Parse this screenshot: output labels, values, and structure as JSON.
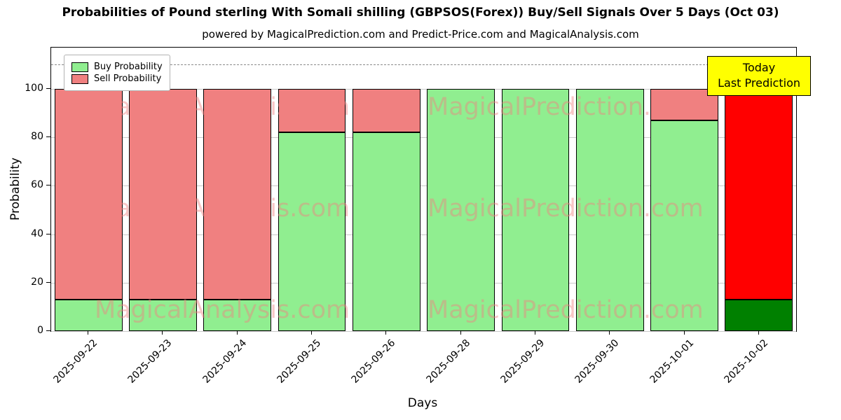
{
  "figure": {
    "title": "Probabilities of Pound sterling With Somali shilling (GBPSOS(Forex)) Buy/Sell Signals Over 5 Days (Oct 03)",
    "subtitle": "powered by MagicalPrediction.com and Predict-Price.com and MagicalAnalysis.com",
    "xlabel": "Days",
    "ylabel": "Probability"
  },
  "legend": {
    "buy_label": "Buy Probability",
    "sell_label": "Sell Probability"
  },
  "annotation": {
    "line1": "Today",
    "line2": "Last Prediction",
    "bg_color": "#ffff00"
  },
  "watermarks": {
    "left_text": "MagicalAnalysis.com",
    "right_text": "MagicalPrediction.com"
  },
  "chart_data": {
    "type": "bar",
    "stacked": true,
    "title": "Probabilities of Pound sterling With Somali shilling (GBPSOS(Forex)) Buy/Sell Signals Over 5 Days (Oct 03)",
    "xlabel": "Days",
    "ylabel": "Probability",
    "categories": [
      "2025-09-22",
      "2025-09-23",
      "2025-09-24",
      "2025-09-25",
      "2025-09-26",
      "2025-09-28",
      "2025-09-29",
      "2025-09-30",
      "2025-10-01",
      "2025-10-02"
    ],
    "series": [
      {
        "name": "Buy Probability",
        "color": "#90ee90",
        "values": [
          13,
          13,
          13,
          82,
          82,
          100,
          100,
          100,
          87,
          13
        ]
      },
      {
        "name": "Sell Probability",
        "color": "#f08080",
        "values": [
          87,
          87,
          87,
          18,
          18,
          0,
          0,
          0,
          13,
          87
        ]
      }
    ],
    "today_bar": {
      "category": "2025-10-02",
      "buy_color": "#008000",
      "sell_color": "#ff0000"
    },
    "ylim": [
      0,
      117
    ],
    "yticks": [
      0,
      20,
      40,
      60,
      80,
      100
    ],
    "dashed_line_y": 110,
    "grid": "horizontal",
    "legend_position": "upper left",
    "bar_edge_color": "#000000"
  }
}
